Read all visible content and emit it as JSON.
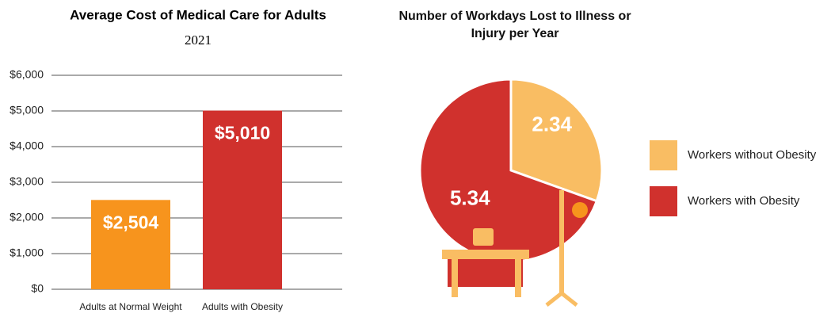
{
  "chart_data": [
    {
      "type": "bar",
      "title": "Average Cost of Medical Care for Adults",
      "subtitle": "2021",
      "categories": [
        "Adults at Normal Weight",
        "Adults with Obesity"
      ],
      "values": [
        2504,
        5010
      ],
      "value_labels": [
        "$2,504",
        "$5,010"
      ],
      "colors": [
        "#f7941d",
        "#d0312d"
      ],
      "ylim": [
        0,
        6000
      ],
      "yticks": [
        {
          "value": 0,
          "label": "$0"
        },
        {
          "value": 1000,
          "label": "$1,000"
        },
        {
          "value": 2000,
          "label": "$2,000"
        },
        {
          "value": 3000,
          "label": "$3,000"
        },
        {
          "value": 4000,
          "label": "$4,000"
        },
        {
          "value": 5000,
          "label": "$5,000"
        },
        {
          "value": 6000,
          "label": "$6,000"
        }
      ],
      "grid": true
    },
    {
      "type": "pie",
      "title": "Number of Workdays Lost to Illness or Injury per Year",
      "categories": [
        "Workers without Obesity",
        "Workers with Obesity"
      ],
      "values": [
        2.34,
        5.34
      ],
      "colors": [
        "#f9bd63",
        "#d0312d"
      ]
    }
  ]
}
